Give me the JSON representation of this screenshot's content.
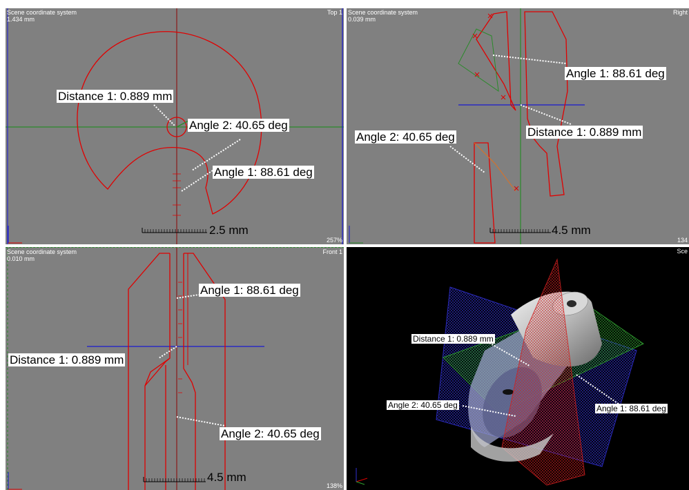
{
  "viewports": {
    "top": {
      "title": "Scene coordinate system",
      "unit_readout": "1.434 mm",
      "view_name": "Top 1",
      "zoom": "257%",
      "scale_bar": "2.5 mm",
      "labels": {
        "distance": "Distance 1: 0.889 mm",
        "angle2": "Angle 2: 40.65 deg",
        "angle1": "Angle 1: 88.61 deg"
      }
    },
    "right": {
      "title": "Scene coordinate system",
      "unit_readout": "0.039 mm",
      "view_name": "Right",
      "zoom": "134",
      "scale_bar": "4.5 mm",
      "labels": {
        "angle1": "Angle 1: 88.61 deg",
        "distance": "Distance 1: 0.889 mm",
        "angle2": "Angle 2: 40.65 deg"
      }
    },
    "front": {
      "title": "Scene coordinate system",
      "unit_readout": "0.010 mm",
      "view_name": "Front 1",
      "zoom": "138%",
      "scale_bar": "4.5 mm",
      "labels": {
        "angle1": "Angle 1: 88.61 deg",
        "distance": "Distance 1: 0.889 mm",
        "angle2": "Angle 2: 40.65 deg"
      }
    },
    "perspective": {
      "title": "Sce",
      "labels": {
        "distance": "Distance 1: 0.889 mm",
        "angle2": "Angle 2: 40.65 deg",
        "angle1": "Angle 1: 88.61 deg"
      }
    }
  },
  "colors": {
    "viewport_bg": "#808080",
    "perspective_bg": "#000000",
    "contour": "#e00000",
    "axis_green": "#2a8a2a",
    "axis_blue": "#1a1ad0",
    "axis_red": "#8b1a1a"
  }
}
